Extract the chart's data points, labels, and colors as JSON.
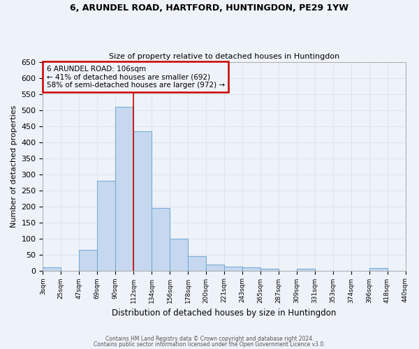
{
  "title": "6, ARUNDEL ROAD, HARTFORD, HUNTINGDON, PE29 1YW",
  "subtitle": "Size of property relative to detached houses in Huntingdon",
  "xlabel": "Distribution of detached houses by size in Huntingdon",
  "ylabel": "Number of detached properties",
  "footnote1": "Contains HM Land Registry data © Crown copyright and database right 2024.",
  "footnote2": "Contains public sector information licensed under the Open Government Licence v3.0.",
  "annotation_line1": "6 ARUNDEL ROAD: 106sqm",
  "annotation_line2": "← 41% of detached houses are smaller (692)",
  "annotation_line3": "58% of semi-detached houses are larger (972) →",
  "bar_values": [
    10,
    0,
    65,
    280,
    510,
    435,
    195,
    100,
    45,
    18,
    12,
    10,
    6,
    0,
    5,
    0,
    0,
    0,
    7,
    0
  ],
  "categories": [
    "3sqm",
    "25sqm",
    "47sqm",
    "69sqm",
    "90sqm",
    "112sqm",
    "134sqm",
    "156sqm",
    "178sqm",
    "200sqm",
    "221sqm",
    "243sqm",
    "265sqm",
    "287sqm",
    "309sqm",
    "331sqm",
    "353sqm",
    "374sqm",
    "396sqm",
    "418sqm",
    "440sqm"
  ],
  "bar_color": "#c5d8ef",
  "bar_edgecolor": "#7aadd4",
  "vline_x_bin": 5,
  "vline_color": "#cc0000",
  "ylim": [
    0,
    650
  ],
  "yticks": [
    0,
    50,
    100,
    150,
    200,
    250,
    300,
    350,
    400,
    450,
    500,
    550,
    600,
    650
  ],
  "annotation_box_color": "#cc0000",
  "background_color": "#eef2f9",
  "grid_color": "#dde6f2"
}
